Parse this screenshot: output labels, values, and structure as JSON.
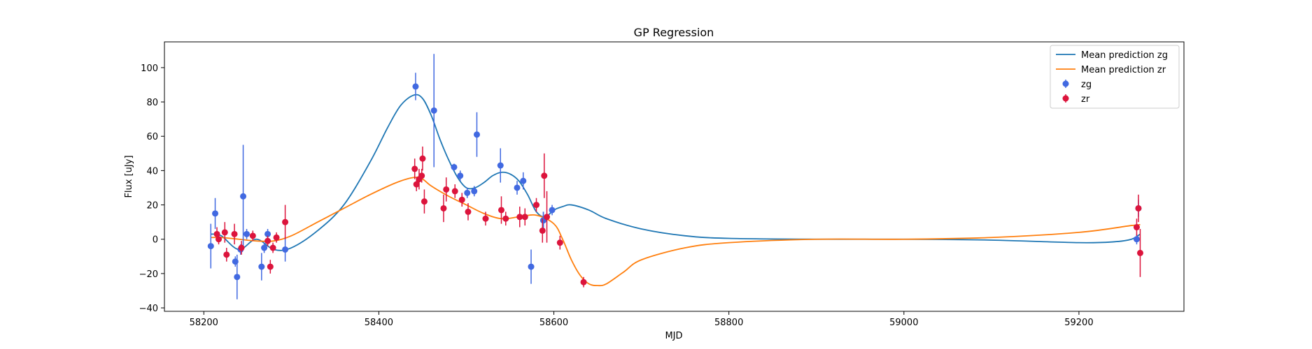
{
  "chart_data": {
    "type": "scatter",
    "title": "GP Regression",
    "xlabel": "MJD",
    "ylabel": "Flux [uJy]",
    "xlim": [
      58155,
      59320
    ],
    "ylim": [
      -42,
      115
    ],
    "xticks": [
      58200,
      58400,
      58600,
      58800,
      59000,
      59200
    ],
    "yticks": [
      -40,
      -20,
      0,
      20,
      40,
      60,
      80,
      100
    ],
    "grid": false,
    "legend_position": "top-right",
    "colors": {
      "zg_line": "#1f77b4",
      "zr_line": "#ff7f0e",
      "zg_points": "#4169e1",
      "zr_points": "#dc143c"
    },
    "lines": [
      {
        "name": "Mean prediction zg",
        "x": [
          58208,
          58220,
          58240,
          58260,
          58280,
          58300,
          58330,
          58360,
          58390,
          58410,
          58425,
          58440,
          58450,
          58460,
          58470,
          58480,
          58490,
          58500,
          58510,
          58520,
          58530,
          58540,
          58550,
          58560,
          58570,
          58580,
          58590,
          58600,
          58610,
          58620,
          58640,
          58660,
          58700,
          58750,
          58800,
          58900,
          59000,
          59100,
          59200,
          59240,
          59260,
          59270
        ],
        "y": [
          3,
          2,
          -6,
          0,
          -6,
          -5,
          5,
          20,
          45,
          65,
          78,
          84,
          82,
          72,
          58,
          46,
          36,
          30,
          30,
          33,
          37,
          39,
          38,
          34,
          26,
          16,
          13,
          17,
          19,
          20,
          17,
          12,
          6,
          2,
          0.5,
          0,
          0,
          -0.5,
          -2,
          -1.5,
          0,
          3
        ]
      },
      {
        "name": "Mean prediction zr",
        "x": [
          58208,
          58220,
          58240,
          58260,
          58280,
          58300,
          58330,
          58360,
          58390,
          58420,
          58440,
          58450,
          58460,
          58480,
          58500,
          58520,
          58540,
          58560,
          58580,
          58600,
          58610,
          58620,
          58630,
          58640,
          58650,
          58660,
          58680,
          58700,
          58750,
          58800,
          58900,
          59000,
          59100,
          59200,
          59260,
          59270
        ],
        "y": [
          1,
          1,
          0,
          -1,
          -1,
          2,
          10,
          18,
          26,
          33,
          36,
          35,
          31,
          25,
          20,
          15,
          12,
          13,
          14,
          9,
          0,
          -12,
          -21,
          -26,
          -27,
          -26,
          -19,
          -12,
          -5,
          -2,
          0,
          0,
          1,
          4,
          8,
          8.5
        ]
      }
    ],
    "series": [
      {
        "name": "zg",
        "x": [
          58208,
          58213,
          58236,
          58238,
          58242,
          58245,
          58249,
          58266,
          58269,
          58273,
          58293,
          58442,
          58463,
          58486,
          58493,
          58501,
          58509,
          58512,
          58539,
          58558,
          58565,
          58574,
          58588,
          58598,
          58588,
          59266,
          59268
        ],
        "y": [
          -4,
          15,
          -13,
          -22,
          -6,
          25,
          3,
          -16,
          -5,
          3,
          -6,
          89,
          75,
          42,
          37,
          27,
          28,
          61,
          43,
          30,
          34,
          -16,
          11,
          17,
          11,
          0,
          18
        ],
        "err": [
          13,
          9,
          3,
          13,
          3,
          30,
          3,
          8,
          3,
          3,
          7,
          8,
          33,
          2,
          3,
          3,
          3,
          13,
          10,
          4,
          5,
          10,
          5,
          3,
          5,
          3,
          5
        ]
      },
      {
        "name": "zr",
        "x": [
          58215,
          58217,
          58224,
          58226,
          58235,
          58243,
          58256,
          58273,
          58276,
          58279,
          58283,
          58293,
          58441,
          58443,
          58446,
          58449,
          58450,
          58452,
          58474,
          58477,
          58487,
          58495,
          58502,
          58522,
          58540,
          58545,
          58561,
          58567,
          58580,
          58587,
          58589,
          58592,
          58607,
          58634,
          59266,
          59268,
          59270
        ],
        "y": [
          3,
          0,
          4,
          -9,
          3,
          -5,
          2,
          -1,
          -16,
          -5,
          1,
          10,
          41,
          32,
          35,
          37,
          47,
          22,
          18,
          29,
          28,
          23,
          16,
          12,
          17,
          12,
          13,
          13,
          20,
          5,
          37,
          13,
          -2,
          -25,
          7,
          18,
          -8
        ],
        "err": [
          4,
          3,
          6,
          4,
          6,
          4,
          3,
          3,
          4,
          3,
          3,
          10,
          6,
          4,
          6,
          4,
          7,
          7,
          8,
          7,
          4,
          4,
          5,
          4,
          8,
          4,
          6,
          5,
          4,
          7,
          13,
          15,
          4,
          3,
          5,
          8,
          14
        ]
      }
    ],
    "legend": [
      "Mean prediction zg",
      "Mean prediction zr",
      "zg",
      "zr"
    ]
  }
}
